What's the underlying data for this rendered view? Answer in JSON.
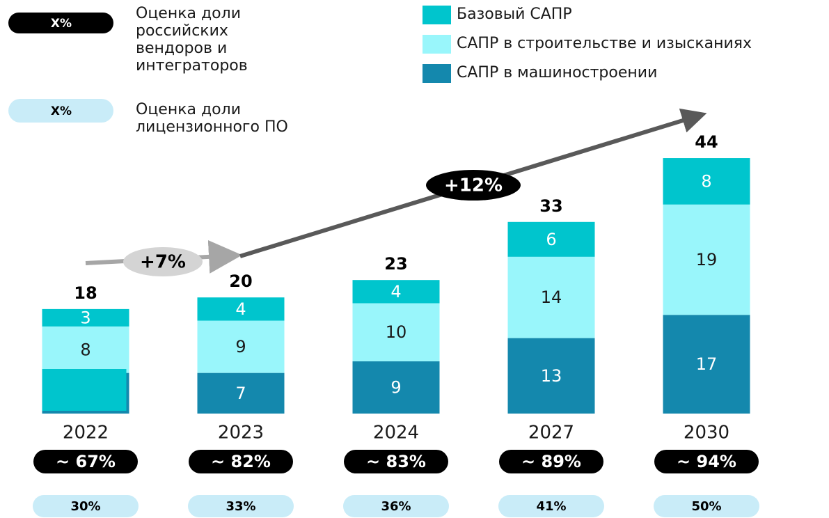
{
  "chart_data": {
    "type": "bar",
    "stacked": true,
    "categories": [
      "2022",
      "2023",
      "2024",
      "2027",
      "2030"
    ],
    "series": [
      {
        "name": "Базовый САПР",
        "color": "#00c5cd",
        "label_color": "#ffffff",
        "values": [
          3,
          4,
          4,
          6,
          8
        ]
      },
      {
        "name": "САПР в строительстве и изысканиях",
        "color": "#99f6fb",
        "label_color": "#1a1a1a",
        "values": [
          8,
          9,
          10,
          14,
          19
        ]
      },
      {
        "name": "САПР в машиностроении",
        "color": "#1488ad",
        "label_color": "#ffffff",
        "values": [
          7,
          7,
          9,
          13,
          17
        ],
        "value_labels": [
          null,
          "7",
          "9",
          "13",
          "17"
        ]
      }
    ],
    "totals": [
      18,
      20,
      23,
      33,
      44
    ],
    "growth": [
      "+7%",
      "+12%"
    ],
    "russian_share": {
      "label": "X%",
      "text_lines": [
        "Оценка доли",
        "российских",
        "вендоров и",
        "интеграторов"
      ],
      "values": [
        "~ 67%",
        "~ 82%",
        "~ 83%",
        "~ 89%",
        "~ 94%"
      ]
    },
    "license_share": {
      "label": "X%",
      "text_lines": [
        "Оценка доли",
        "лицензионного ПО"
      ],
      "values": [
        "30%",
        "33%",
        "36%",
        "41%",
        "50%"
      ]
    }
  }
}
